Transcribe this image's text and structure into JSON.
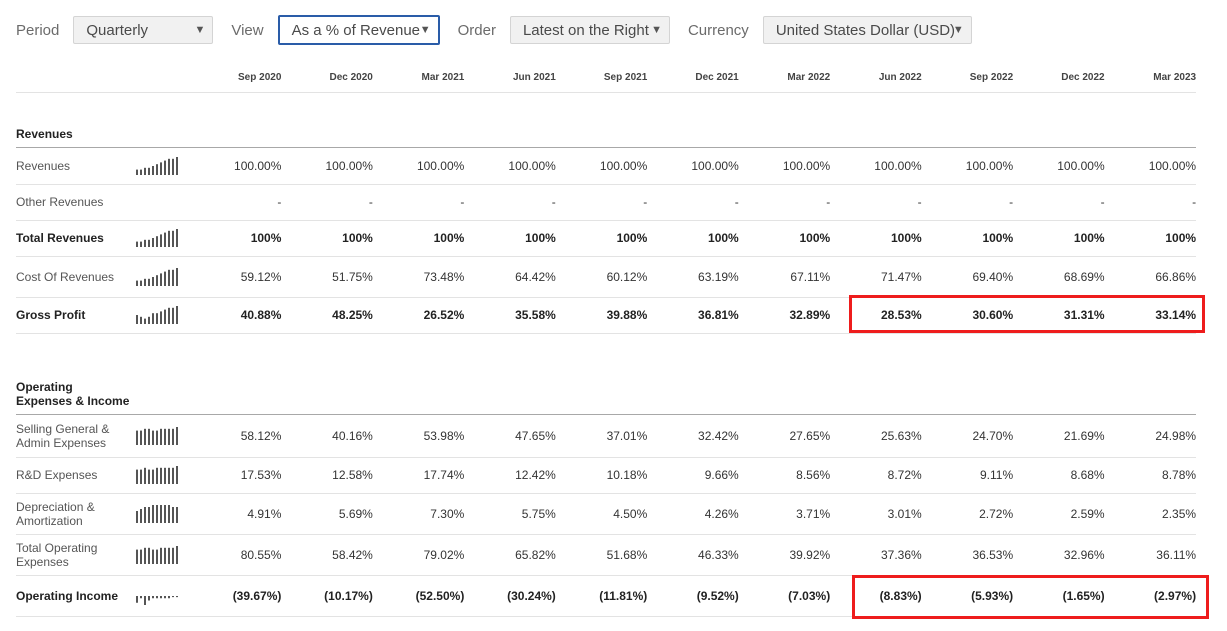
{
  "toolbar": {
    "period": {
      "label": "Period",
      "value": "Quarterly"
    },
    "view": {
      "label": "View",
      "value": "As a % of Revenue"
    },
    "order": {
      "label": "Order",
      "value": "Latest on the Right"
    },
    "currency": {
      "label": "Currency",
      "value": "United States Dollar (USD)"
    },
    "caret": "▼"
  },
  "columns": [
    "Sep 2020",
    "Dec 2020",
    "Mar 2021",
    "Jun 2021",
    "Sep 2021",
    "Dec 2021",
    "Mar 2022",
    "Jun 2022",
    "Sep 2022",
    "Dec 2022",
    "Mar 2023"
  ],
  "sections": [
    {
      "title": "Revenues",
      "rows": [
        {
          "label": "Revenues",
          "bold": false,
          "spark": [
            3,
            3,
            4,
            4,
            5,
            6,
            7,
            8,
            9,
            9,
            10
          ],
          "values": [
            "100.00%",
            "100.00%",
            "100.00%",
            "100.00%",
            "100.00%",
            "100.00%",
            "100.00%",
            "100.00%",
            "100.00%",
            "100.00%",
            "100.00%"
          ]
        },
        {
          "label": "Other Revenues",
          "bold": false,
          "spark": [],
          "values": [
            "-",
            "-",
            "-",
            "-",
            "-",
            "-",
            "-",
            "-",
            "-",
            "-",
            "-"
          ]
        },
        {
          "label": "Total Revenues",
          "bold": true,
          "spark": [
            3,
            3,
            4,
            4,
            5,
            6,
            7,
            8,
            9,
            9,
            10
          ],
          "values": [
            "100%",
            "100%",
            "100%",
            "100%",
            "100%",
            "100%",
            "100%",
            "100%",
            "100%",
            "100%",
            "100%"
          ]
        },
        {
          "label": "Cost Of Revenues",
          "bold": false,
          "spark": [
            3,
            3,
            4,
            4,
            5,
            6,
            7,
            8,
            9,
            9,
            10
          ],
          "values": [
            "59.12%",
            "51.75%",
            "73.48%",
            "64.42%",
            "60.12%",
            "63.19%",
            "67.11%",
            "71.47%",
            "69.40%",
            "68.69%",
            "66.86%"
          ]
        },
        {
          "label": "Gross Profit",
          "bold": true,
          "spark": [
            5,
            4,
            3,
            4,
            6,
            6,
            7,
            8,
            9,
            9,
            10
          ],
          "values": [
            "40.88%",
            "48.25%",
            "26.52%",
            "35.58%",
            "39.88%",
            "36.81%",
            "32.89%",
            "28.53%",
            "30.60%",
            "31.31%",
            "33.14%"
          ]
        }
      ]
    },
    {
      "title": "Operating Expenses & Income",
      "rows": [
        {
          "label": "Selling General & Admin Expenses",
          "bold": false,
          "spark": [
            8,
            8,
            9,
            9,
            8,
            8,
            9,
            9,
            9,
            9,
            10
          ],
          "values": [
            "58.12%",
            "40.16%",
            "53.98%",
            "47.65%",
            "37.01%",
            "32.42%",
            "27.65%",
            "25.63%",
            "24.70%",
            "21.69%",
            "24.98%"
          ]
        },
        {
          "label": "R&D Expenses",
          "bold": false,
          "spark": [
            8,
            8,
            9,
            8,
            8,
            9,
            9,
            9,
            9,
            9,
            10
          ],
          "values": [
            "17.53%",
            "12.58%",
            "17.74%",
            "12.42%",
            "10.18%",
            "9.66%",
            "8.56%",
            "8.72%",
            "9.11%",
            "8.68%",
            "8.78%"
          ]
        },
        {
          "label": "Depreciation & Amortization",
          "bold": false,
          "spark": [
            6,
            7,
            8,
            8,
            9,
            9,
            9,
            9,
            9,
            8,
            8
          ],
          "values": [
            "4.91%",
            "5.69%",
            "7.30%",
            "5.75%",
            "4.50%",
            "4.26%",
            "3.71%",
            "3.01%",
            "2.72%",
            "2.59%",
            "2.35%"
          ]
        },
        {
          "label": "Total Operating Expenses",
          "bold": false,
          "spark": [
            8,
            8,
            9,
            9,
            8,
            8,
            9,
            9,
            9,
            9,
            10
          ],
          "values": [
            "80.55%",
            "58.42%",
            "79.02%",
            "65.82%",
            "51.68%",
            "46.33%",
            "39.92%",
            "37.36%",
            "36.53%",
            "32.96%",
            "36.11%"
          ]
        },
        {
          "label": "Operating Income",
          "bold": true,
          "spark": [
            -3,
            -1,
            -4,
            -2,
            -1,
            -1,
            -1,
            -1,
            -1,
            -0.5,
            -0.5
          ],
          "values": [
            "(39.67%)",
            "(10.17%)",
            "(52.50%)",
            "(30.24%)",
            "(11.81%)",
            "(9.52%)",
            "(7.03%)",
            "(8.83%)",
            "(5.93%)",
            "(1.65%)",
            "(2.97%)"
          ]
        }
      ]
    }
  ],
  "colors": {
    "highlight": "#ee1c1c",
    "spark": "#555555",
    "active_border": "#2a5ca8"
  }
}
